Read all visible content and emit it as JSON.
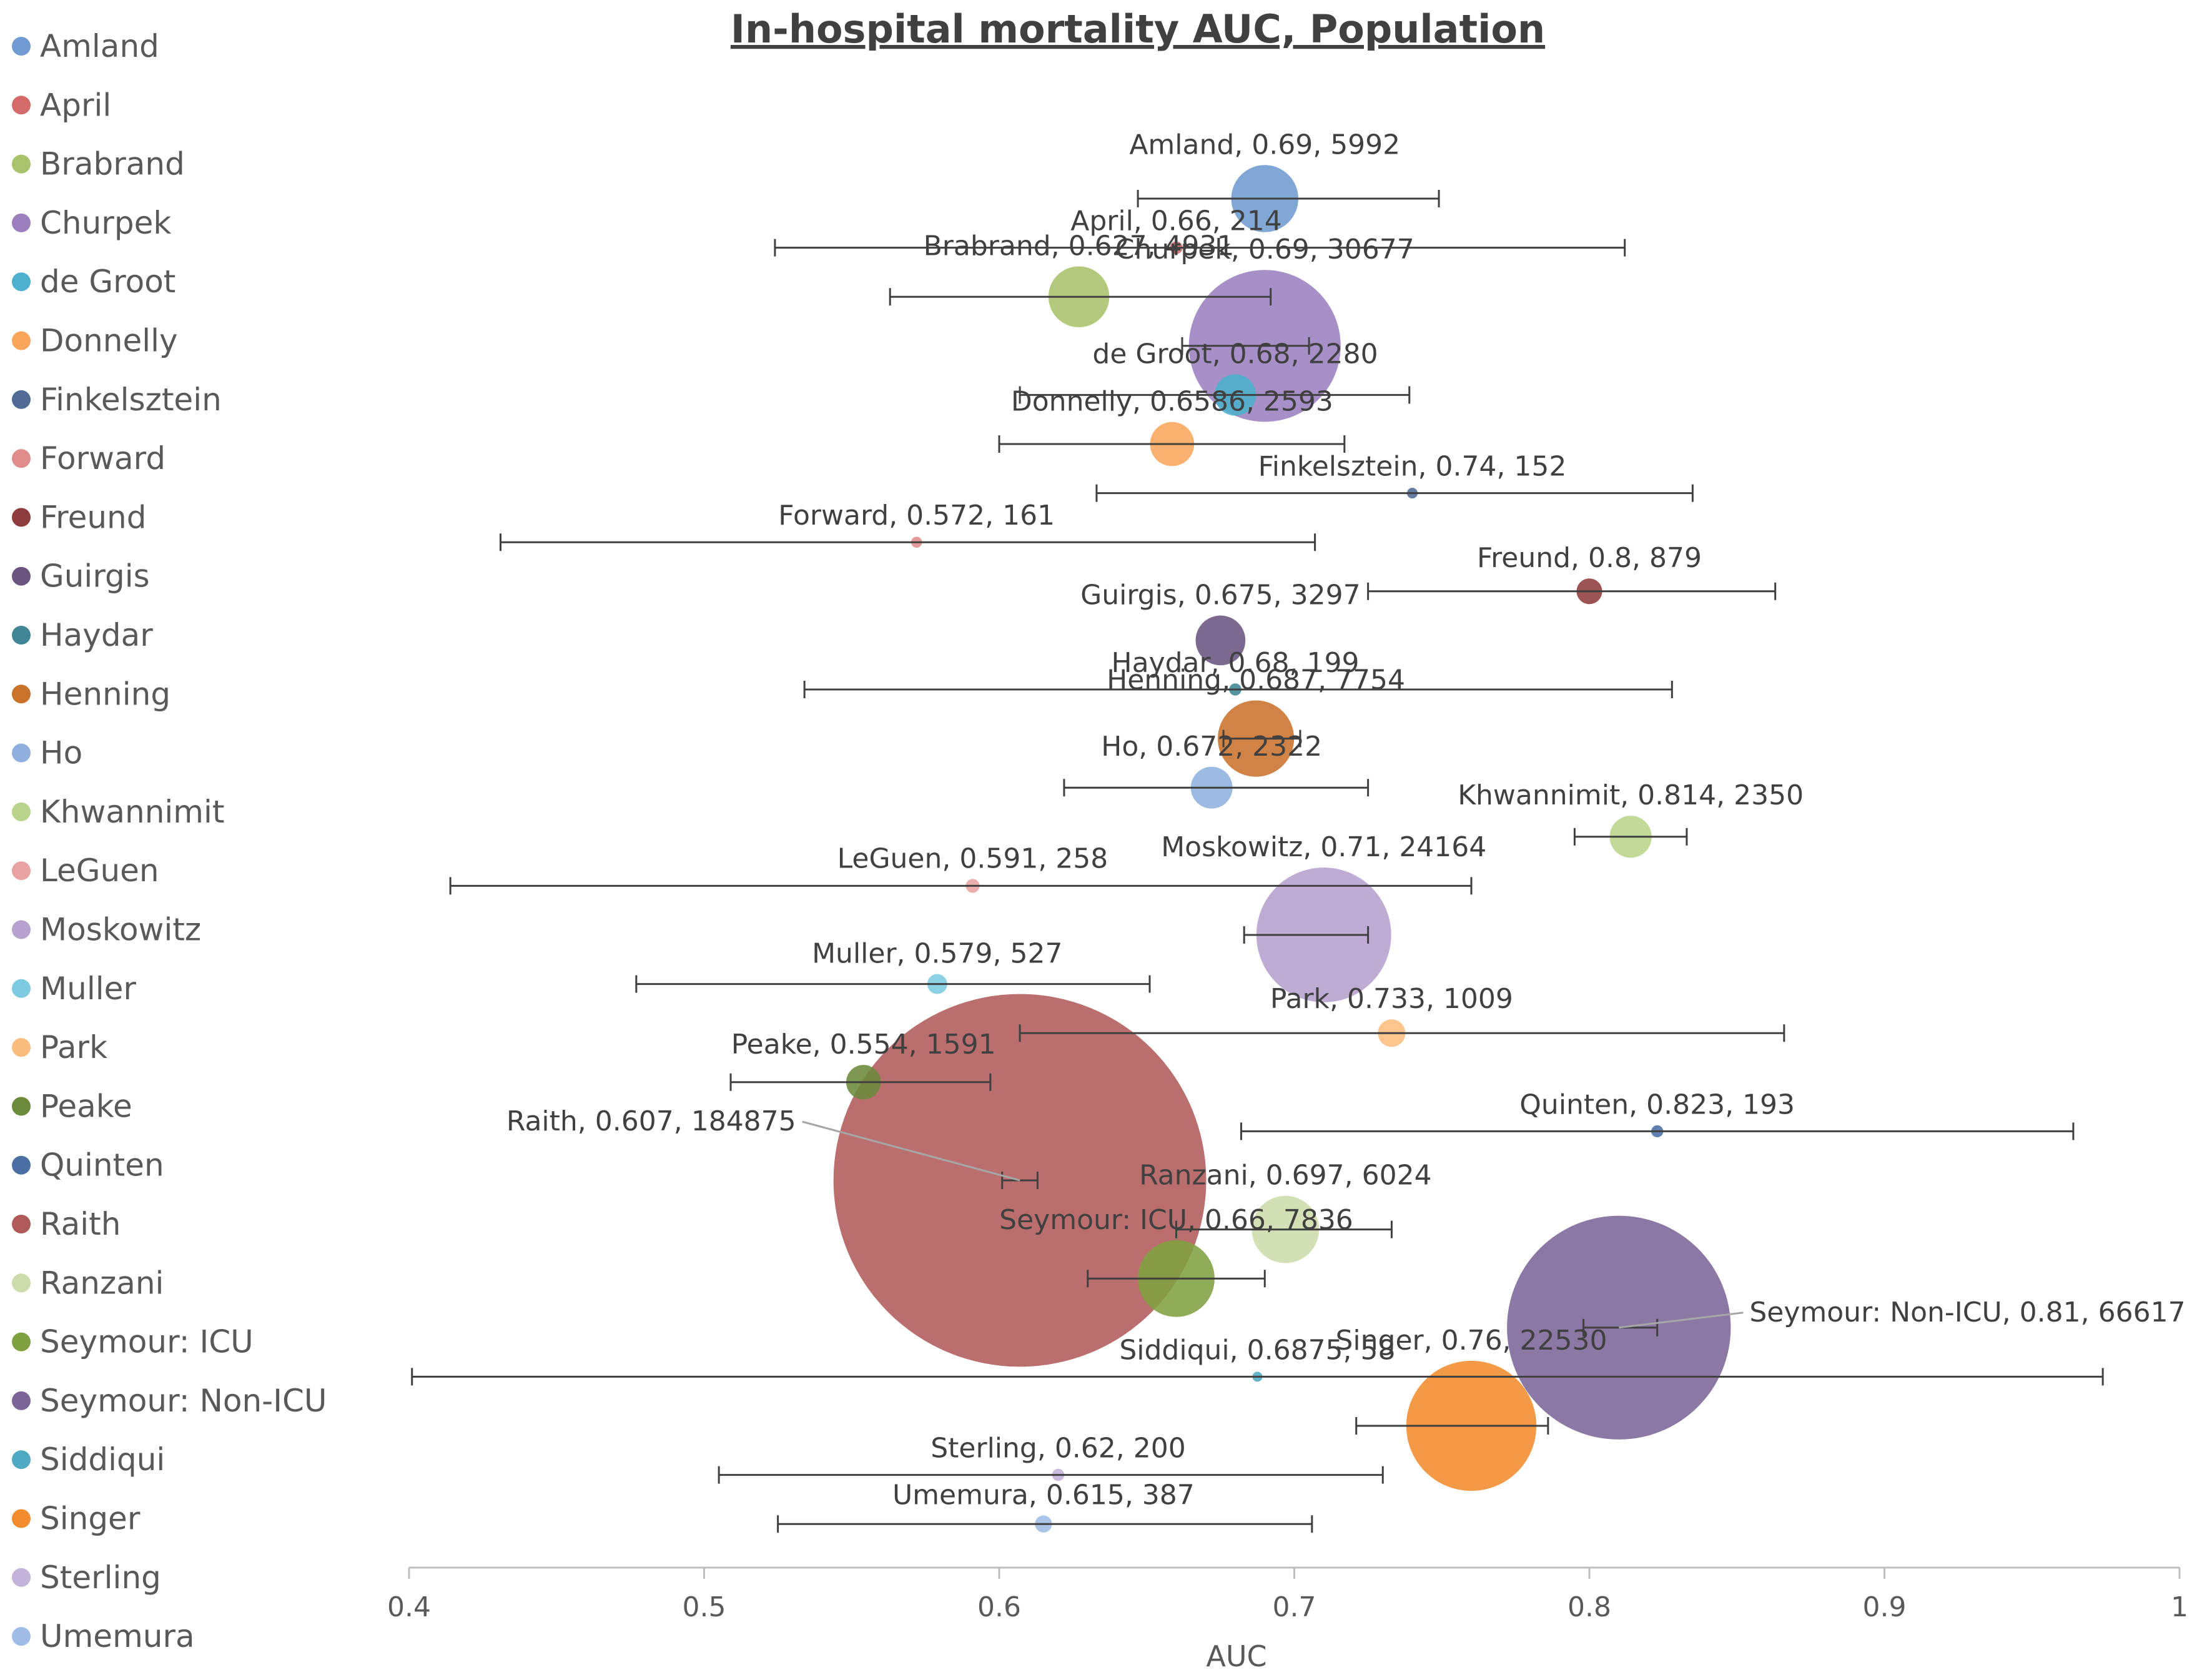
{
  "chart_data": {
    "type": "bubble",
    "title": "In-hospital mortality AUC, Population",
    "xlabel": "AUC",
    "ylabel": "",
    "xlim": [
      0.4,
      1.0
    ],
    "xticks": [
      0.4,
      0.5,
      0.6,
      0.7,
      0.8,
      0.9,
      1
    ],
    "xtick_labels": [
      "0.4",
      "0.5",
      "0.6",
      "0.7",
      "0.8",
      "0.9",
      "1"
    ],
    "grid": false,
    "legend": "left",
    "size_encoding": "population",
    "series": [
      {
        "name": "Amland",
        "auc": 0.69,
        "population": 5992,
        "ci": [
          0.647,
          0.749
        ],
        "label": "Amland, 0.69, 5992",
        "color": "#6f9bd2"
      },
      {
        "name": "April",
        "auc": 0.66,
        "population": 214,
        "ci": [
          0.524,
          0.812
        ],
        "label": "April, 0.66, 214",
        "color": "#d46a6a"
      },
      {
        "name": "Brabrand",
        "auc": 0.627,
        "population": 4931,
        "ci": [
          0.563,
          0.692
        ],
        "label": "Brabrand, 0.627, 4931",
        "color": "#a8c36b"
      },
      {
        "name": "Churpek",
        "auc": 0.69,
        "population": 30677,
        "ci": [
          0.662,
          0.705
        ],
        "label": "Churpek, 0.69, 30677",
        "color": "#9b7fbf"
      },
      {
        "name": "de Groot",
        "auc": 0.68,
        "population": 2280,
        "ci": [
          0.607,
          0.739
        ],
        "label": "de Groot, 0.68, 2280",
        "color": "#4bb1cc"
      },
      {
        "name": "Donnelly",
        "auc": 0.6586,
        "population": 2593,
        "ci": [
          0.6,
          0.717
        ],
        "label": "Donnelly, 0.6586, 2593",
        "color": "#f9a55a"
      },
      {
        "name": "Finkelsztein",
        "auc": 0.74,
        "population": 152,
        "ci": [
          0.633,
          0.835
        ],
        "label": "Finkelsztein, 0.74, 152",
        "color": "#4f6b93"
      },
      {
        "name": "Forward",
        "auc": 0.572,
        "population": 161,
        "ci": [
          0.431,
          0.707
        ],
        "label": "Forward, 0.572, 161",
        "color": "#e08c8a"
      },
      {
        "name": "Freund",
        "auc": 0.8,
        "population": 879,
        "ci": [
          0.725,
          0.863
        ],
        "label": "Freund, 0.8, 879",
        "color": "#8e3b3b"
      },
      {
        "name": "Guirgis",
        "auc": 0.675,
        "population": 3297,
        "ci": [],
        "label": "Guirgis, 0.675, 3297",
        "color": "#6a5480"
      },
      {
        "name": "Haydar",
        "auc": 0.68,
        "population": 199,
        "ci": [
          0.534,
          0.828
        ],
        "label": "Haydar, 0.68, 199",
        "color": "#3f8595"
      },
      {
        "name": "Henning",
        "auc": 0.687,
        "population": 7754,
        "ci": [
          0.676,
          0.702
        ],
        "label": "Henning, 0.687, 7754",
        "color": "#c9722a"
      },
      {
        "name": "Ho",
        "auc": 0.672,
        "population": 2322,
        "ci": [
          0.622,
          0.725
        ],
        "label": "Ho, 0.672, 2322",
        "color": "#8fb0de"
      },
      {
        "name": "Khwannimit",
        "auc": 0.814,
        "population": 2350,
        "ci": [
          0.795,
          0.833
        ],
        "label": "Khwannimit, 0.814, 2350",
        "color": "#b9d48a"
      },
      {
        "name": "LeGuen",
        "auc": 0.591,
        "population": 258,
        "ci": [
          0.414,
          0.76
        ],
        "label": "LeGuen, 0.591, 258",
        "color": "#e9a2a2"
      },
      {
        "name": "Moskowitz",
        "auc": 0.71,
        "population": 24164,
        "ci": [
          0.683,
          0.725
        ],
        "label": "Moskowitz, 0.71, 24164",
        "color": "#b6a1cf"
      },
      {
        "name": "Muller",
        "auc": 0.579,
        "population": 527,
        "ci": [
          0.477,
          0.651
        ],
        "label": "Muller, 0.579, 527",
        "color": "#7ccbe0"
      },
      {
        "name": "Park",
        "auc": 0.733,
        "population": 1009,
        "ci": [
          0.607,
          0.866
        ],
        "label": "Park, 0.733, 1009",
        "color": "#fbbd7d"
      },
      {
        "name": "Peake",
        "auc": 0.554,
        "population": 1591,
        "ci": [
          0.509,
          0.597
        ],
        "label": "Peake, 0.554, 1591",
        "color": "#6b8a3a"
      },
      {
        "name": "Quinten",
        "auc": 0.823,
        "population": 193,
        "ci": [
          0.682,
          0.964
        ],
        "label": "Quinten, 0.823, 193",
        "color": "#4a6fa5"
      },
      {
        "name": "Raith",
        "auc": 0.607,
        "population": 184875,
        "ci": [
          0.601,
          0.613
        ],
        "label": "Raith, 0.607, 184875",
        "color": "#b15a5a"
      },
      {
        "name": "Ranzani",
        "auc": 0.697,
        "population": 6024,
        "ci": [
          0.66,
          0.733
        ],
        "label": "Ranzani, 0.697, 6024",
        "color": "#cddcab"
      },
      {
        "name": "Seymour: ICU",
        "auc": 0.66,
        "population": 7836,
        "ci": [
          0.63,
          0.69
        ],
        "label": "Seymour: ICU, 0.66, 7836",
        "color": "#7fa03f"
      },
      {
        "name": "Seymour: Non-ICU",
        "auc": 0.81,
        "population": 66617,
        "ci": [
          0.798,
          0.823
        ],
        "label": "Seymour: Non-ICU, 0.81, 66617",
        "color": "#7b6597"
      },
      {
        "name": "Siddiqui",
        "auc": 0.6875,
        "population": 58,
        "ci": [
          0.401,
          0.974
        ],
        "label": "Siddiqui, 0.6875, 58",
        "color": "#4eaac3"
      },
      {
        "name": "Singer",
        "auc": 0.76,
        "population": 22530,
        "ci": [
          0.721,
          0.786
        ],
        "label": "Singer, 0.76, 22530",
        "color": "#f28c2e"
      },
      {
        "name": "Sterling",
        "auc": 0.62,
        "population": 200,
        "ci": [
          0.505,
          0.73
        ],
        "label": "Sterling, 0.62, 200",
        "color": "#c3b2da"
      },
      {
        "name": "Umemura",
        "auc": 0.615,
        "population": 387,
        "ci": [
          0.525,
          0.706
        ],
        "label": "Umemura, 0.615, 387",
        "color": "#9fbde6"
      }
    ]
  }
}
